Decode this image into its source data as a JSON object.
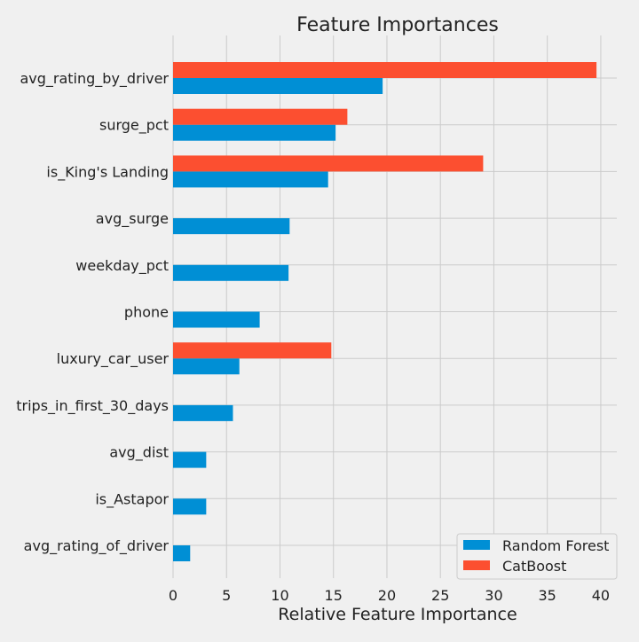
{
  "chart_data": {
    "type": "bar",
    "orientation": "horizontal",
    "title": "Feature Importances",
    "xlabel": "Relative Feature Importance",
    "ylabel": "",
    "xlim": [
      0,
      41.5
    ],
    "xticks": [
      0,
      5,
      10,
      15,
      20,
      25,
      30,
      35,
      40
    ],
    "grid": true,
    "legend_position": "bottom-right",
    "categories": [
      "avg_rating_by_driver",
      "surge_pct",
      "is_King's Landing",
      "avg_surge",
      "weekday_pct",
      "phone",
      "luxury_car_user",
      "trips_in_first_30_days",
      "avg_dist",
      "is_Astapor",
      "avg_rating_of_driver"
    ],
    "series": [
      {
        "name": "Random Forest",
        "color": "#008fd5",
        "values": [
          19.6,
          15.2,
          14.5,
          10.9,
          10.8,
          8.1,
          6.2,
          5.6,
          3.1,
          3.1,
          1.6
        ]
      },
      {
        "name": "CatBoost",
        "color": "#fc4f30",
        "values": [
          39.6,
          16.3,
          29.0,
          0,
          0,
          0,
          14.8,
          0,
          0,
          0,
          0
        ]
      }
    ]
  }
}
